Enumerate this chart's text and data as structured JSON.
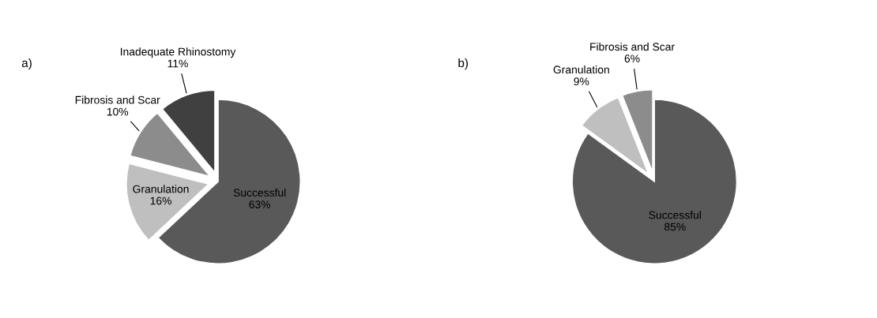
{
  "chart_data": [
    {
      "type": "pie",
      "title": "a)",
      "categories": [
        "Successful",
        "Granulation",
        "Fibrosis and Scar",
        "Inadequate Rhinostomy"
      ],
      "values": [
        63,
        16,
        10,
        11
      ],
      "colors": [
        "#595959",
        "#bfbfbf",
        "#8c8c8c",
        "#404040"
      ],
      "value_labels": [
        "63%",
        "16%",
        "10%",
        "11%"
      ],
      "legend": false
    },
    {
      "type": "pie",
      "title": "b)",
      "categories": [
        "Successful",
        "Granulation",
        "Fibrosis and Scar"
      ],
      "values": [
        85,
        9,
        6
      ],
      "colors": [
        "#595959",
        "#bfbfbf",
        "#8c8c8c"
      ],
      "value_labels": [
        "85%",
        "9%",
        "6%"
      ],
      "legend": false
    }
  ]
}
